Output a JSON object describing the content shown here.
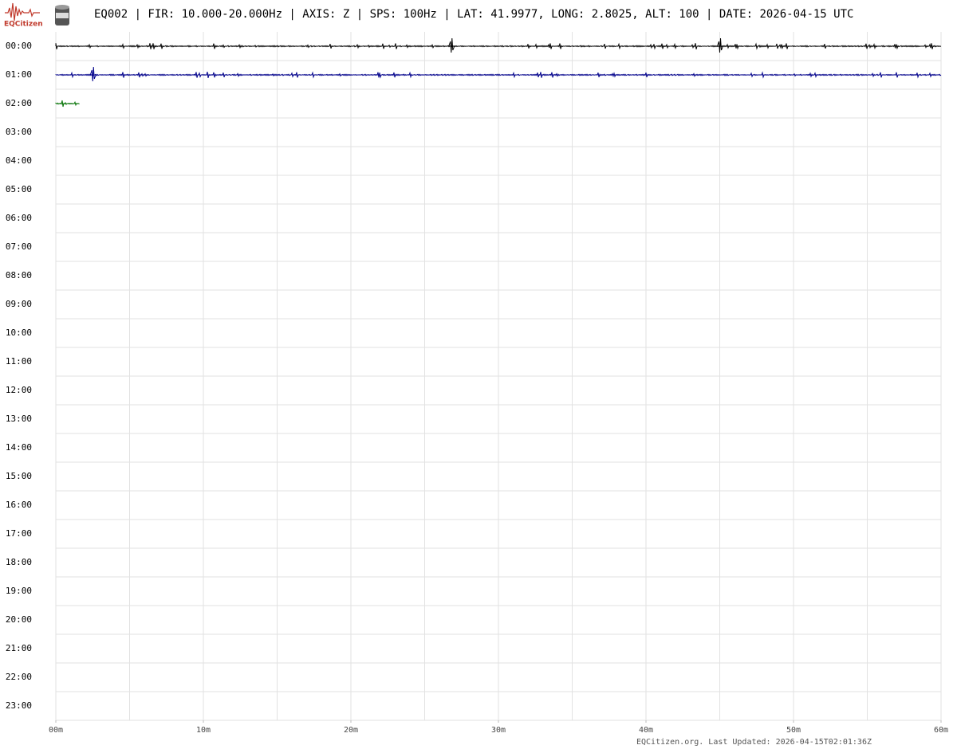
{
  "chart_data": {
    "type": "helicorder",
    "title": "EQ002 | FIR: 10.000-20.000Hz | AXIS: Z | SPS: 100Hz | LAT: 41.9977, LONG: 2.8025, ALT: 100 | DATE: 2026-04-15 UTC",
    "logo_text": "EQCitizen",
    "footer": "EQCitizen.org. Last Updated: 2026-04-15T02:01:36Z",
    "rows": [
      "00:00",
      "01:00",
      "02:00",
      "03:00",
      "04:00",
      "05:00",
      "06:00",
      "07:00",
      "08:00",
      "09:00",
      "10:00",
      "11:00",
      "12:00",
      "13:00",
      "14:00",
      "15:00",
      "16:00",
      "17:00",
      "18:00",
      "19:00",
      "20:00",
      "21:00",
      "22:00",
      "23:00"
    ],
    "xlim": [
      0,
      60
    ],
    "xticks": [
      {
        "value": 0,
        "label": "00m"
      },
      {
        "value": 10,
        "label": "10m"
      },
      {
        "value": 20,
        "label": "20m"
      },
      {
        "value": 30,
        "label": "30m"
      },
      {
        "value": 40,
        "label": "40m"
      },
      {
        "value": 50,
        "label": "50m"
      },
      {
        "value": 60,
        "label": "60m"
      }
    ],
    "xgrid": [
      0,
      5,
      10,
      15,
      20,
      25,
      30,
      35,
      40,
      45,
      50,
      55,
      60
    ],
    "traces": [
      {
        "color": "#000000",
        "start": 0,
        "end": 60,
        "spikes": [
          26.8,
          45
        ]
      },
      {
        "color": "#00008b",
        "start": 0,
        "end": 60,
        "spikes": [
          2.5
        ]
      },
      {
        "color": "#007000",
        "start": 0,
        "end": 1.6,
        "spikes": []
      }
    ]
  }
}
